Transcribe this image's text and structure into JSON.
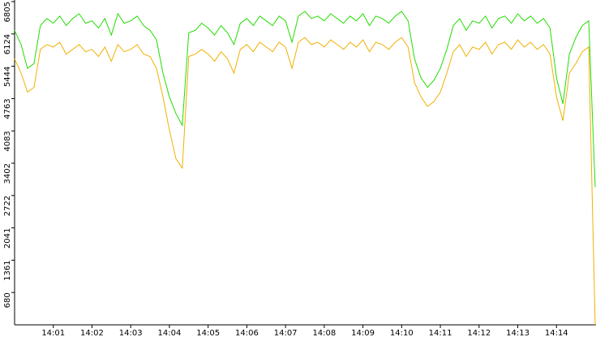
{
  "chart_data": {
    "type": "line",
    "categories": [
      null,
      null,
      null,
      null,
      null,
      null,
      "14:01",
      null,
      null,
      null,
      null,
      null,
      "14:02",
      null,
      null,
      null,
      null,
      null,
      "14:03",
      null,
      null,
      null,
      null,
      null,
      "14:04",
      null,
      null,
      null,
      null,
      null,
      "14:05",
      null,
      null,
      null,
      null,
      null,
      "14:06",
      null,
      null,
      null,
      null,
      null,
      "14:07",
      null,
      null,
      null,
      null,
      null,
      "14:08",
      null,
      null,
      null,
      null,
      null,
      "14:09",
      null,
      null,
      null,
      null,
      null,
      "14:10",
      null,
      null,
      null,
      null,
      null,
      "14:11",
      null,
      null,
      null,
      null,
      null,
      "14:12",
      null,
      null,
      null,
      null,
      null,
      "14:13",
      null,
      null,
      null,
      null,
      null,
      "14:14",
      null,
      null,
      null,
      null,
      null,
      null
    ],
    "series": [
      {
        "color": "#22dd00",
        "values": [
          6200,
          5900,
          5400,
          5500,
          6300,
          6450,
          6350,
          6500,
          6300,
          6450,
          6550,
          6350,
          6400,
          6250,
          6450,
          6100,
          6550,
          6350,
          6400,
          6500,
          6300,
          6200,
          6000,
          5300,
          4800,
          4450,
          4200,
          6150,
          6200,
          6350,
          6250,
          6100,
          6300,
          6150,
          5900,
          6350,
          6450,
          6300,
          6500,
          6400,
          6300,
          6500,
          6400,
          5950,
          6500,
          6600,
          6450,
          6500,
          6400,
          6550,
          6450,
          6350,
          6500,
          6400,
          6550,
          6300,
          6500,
          6450,
          6350,
          6500,
          6600,
          6400,
          5600,
          5200,
          5000,
          5150,
          5400,
          5800,
          6300,
          6450,
          6200,
          6400,
          6350,
          6500,
          6250,
          6450,
          6500,
          6350,
          6550,
          6400,
          6500,
          6350,
          6450,
          6250,
          5200,
          4650,
          5700,
          6050,
          6300,
          6400,
          2900
        ]
      },
      {
        "color": "#f0b000",
        "values": [
          5600,
          5300,
          4900,
          5000,
          5800,
          5900,
          5850,
          5950,
          5700,
          5800,
          5900,
          5750,
          5800,
          5650,
          5850,
          5550,
          5900,
          5750,
          5800,
          5900,
          5700,
          5650,
          5400,
          4800,
          4100,
          3500,
          3300,
          5650,
          5700,
          5800,
          5700,
          5550,
          5750,
          5600,
          5300,
          5800,
          5900,
          5750,
          5950,
          5850,
          5750,
          5950,
          5850,
          5400,
          5950,
          6050,
          5900,
          5950,
          5850,
          6000,
          5900,
          5800,
          5950,
          5850,
          6000,
          5750,
          5950,
          5900,
          5800,
          5950,
          6050,
          5850,
          5100,
          4800,
          4600,
          4700,
          4900,
          5300,
          5750,
          5900,
          5650,
          5850,
          5800,
          5950,
          5700,
          5900,
          5950,
          5800,
          6000,
          5850,
          5950,
          5800,
          5900,
          5700,
          4800,
          4300,
          5300,
          5500,
          5750,
          5850,
          0
        ]
      }
    ],
    "ylim": [
      0,
      6805
    ],
    "yticks": [
      680,
      1361,
      2041,
      2722,
      3402,
      4083,
      4763,
      5444,
      6124,
      6805
    ]
  }
}
